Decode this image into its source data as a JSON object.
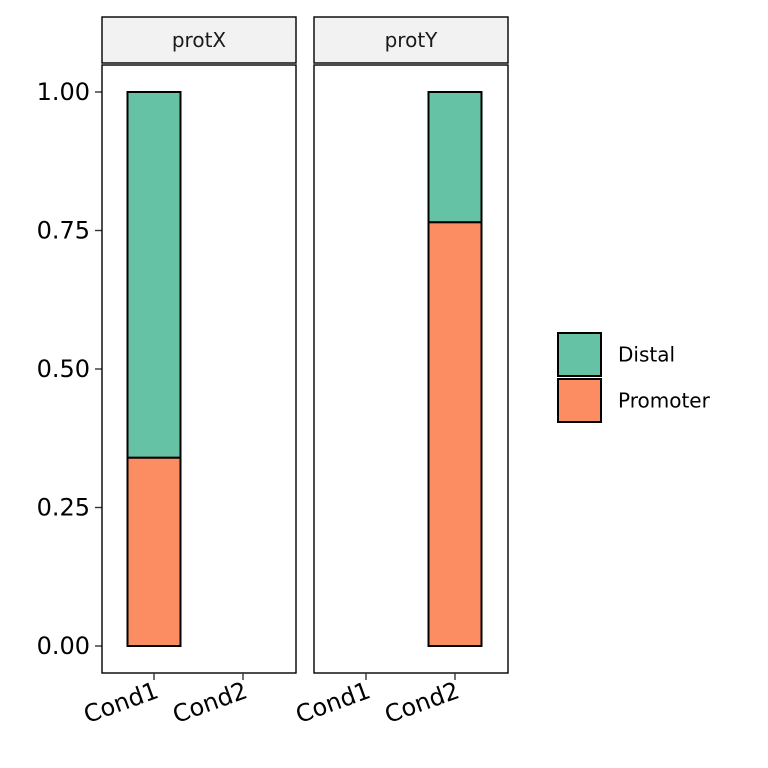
{
  "chart_data": {
    "type": "bar",
    "stacked": true,
    "title": "",
    "xlabel": "",
    "ylabel": "",
    "ylim": [
      0,
      1
    ],
    "yticks": [
      "0.00",
      "0.25",
      "0.50",
      "0.75",
      "1.00"
    ],
    "ytick_values": [
      0,
      0.25,
      0.5,
      0.75,
      1.0
    ],
    "categories": [
      "Cond1",
      "Cond2"
    ],
    "grid": false,
    "legend_position": "right",
    "legend": [
      {
        "name": "Distal",
        "color": "#66C2A5"
      },
      {
        "name": "Promoter",
        "color": "#FC8D62"
      }
    ],
    "facets": [
      {
        "label": "protX",
        "series": [
          {
            "name": "Promoter",
            "values": [
              0.34,
              null
            ]
          },
          {
            "name": "Distal",
            "values": [
              0.66,
              null
            ]
          }
        ]
      },
      {
        "label": "protY",
        "series": [
          {
            "name": "Promoter",
            "values": [
              null,
              0.765
            ]
          },
          {
            "name": "Distal",
            "values": [
              null,
              0.235
            ]
          }
        ]
      }
    ]
  },
  "colors": {
    "strip_fill": "#F2F2F2",
    "panel_border": "#000000",
    "bar_outline": "#000000"
  }
}
